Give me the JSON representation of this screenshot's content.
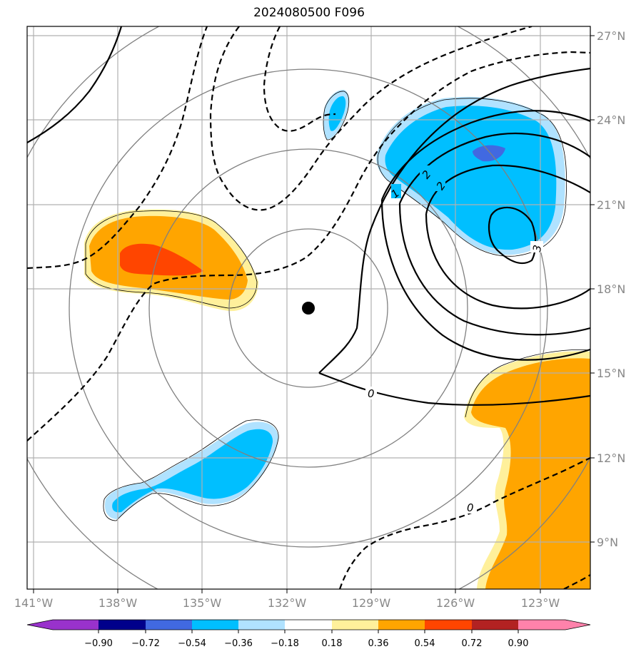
{
  "title": "2024080500 F096",
  "map": {
    "lon_labels": [
      "141°W",
      "138°W",
      "135°W",
      "132°W",
      "129°W",
      "126°W",
      "123°W"
    ],
    "lat_labels": [
      "27°N",
      "24°N",
      "21°N",
      "18°N",
      "15°N",
      "12°N",
      "9°N"
    ],
    "center_marker": {
      "lon": -131.3,
      "lat": 17.3
    },
    "range_ring_count": 4,
    "contour_labels": [
      "0",
      "1",
      "2",
      "2",
      "3",
      "0"
    ],
    "contours": {
      "solid_line_color": "#000000",
      "dashed_line_color": "#000000",
      "grid_color": "#b0b0b0",
      "ring_color": "#808080"
    }
  },
  "colorbar": {
    "ticks": [
      "−0.90",
      "−0.72",
      "−0.54",
      "−0.36",
      "−0.18",
      "0.18",
      "0.36",
      "0.54",
      "0.72",
      "0.90"
    ],
    "colors": [
      "#9932cc",
      "#00008b",
      "#4169e1",
      "#00bfff",
      "#b0e2ff",
      "#ffffff",
      "#fff09b",
      "#ffa500",
      "#ff4500",
      "#b22222",
      "#ff82ab"
    ]
  },
  "fill_colors": {
    "light_blue": "#b0e2ff",
    "blue": "#00bfff",
    "royal_blue": "#4169e1",
    "light_yellow": "#fff09b",
    "orange": "#ffa500",
    "red_orange": "#ff4500"
  }
}
